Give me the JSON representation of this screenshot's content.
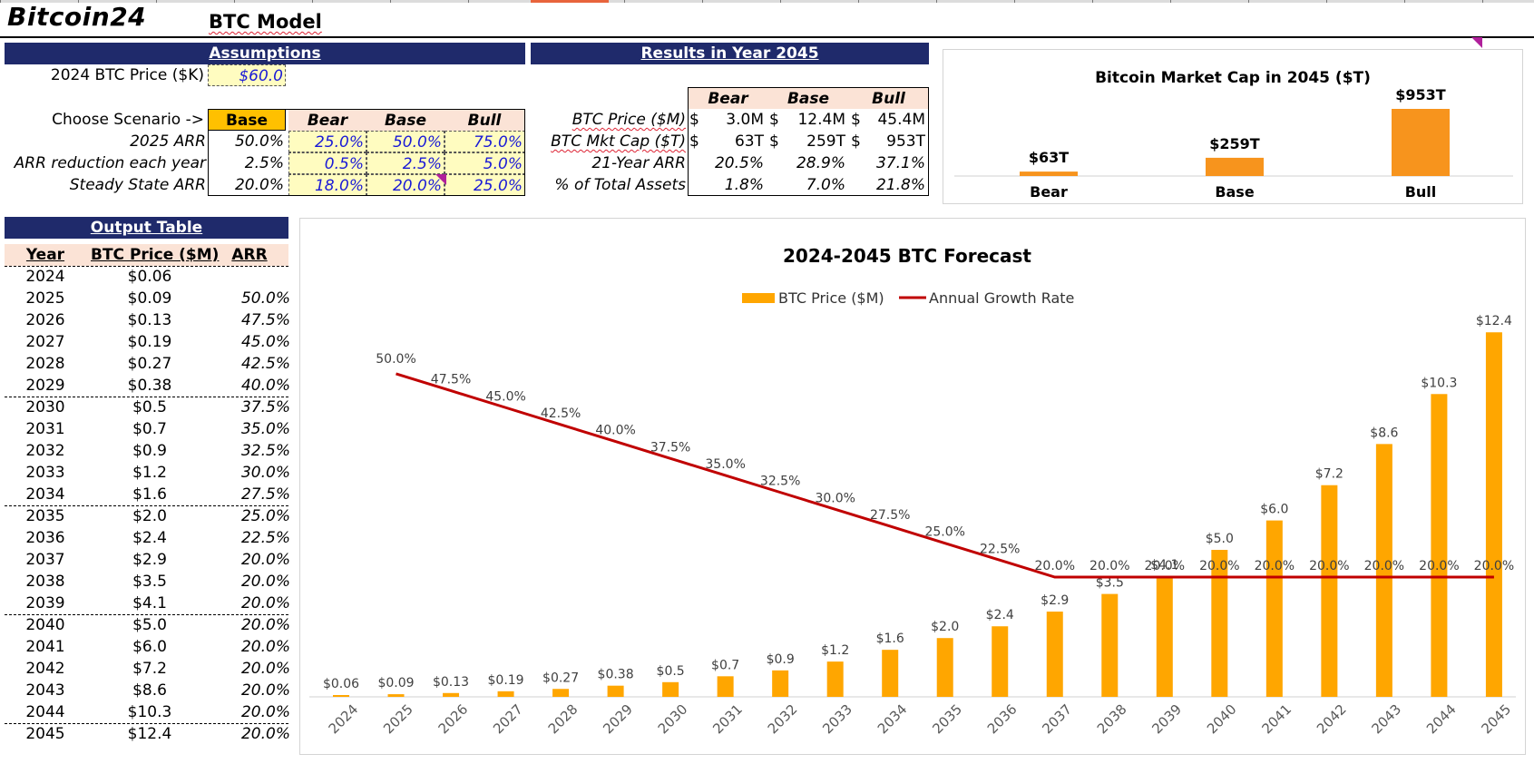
{
  "brand": "Bitcoin24",
  "model_title": "BTC Model",
  "assumptions": {
    "header": "Assumptions",
    "price_label": "2024 BTC Price ($K)",
    "price_value": "$60.0",
    "scenario_label": "Choose Scenario ->",
    "scenario_value": "Base",
    "columns": [
      "Bear",
      "Base",
      "Bull"
    ],
    "rows": [
      {
        "label": "2025 ARR",
        "selected": "50.0%",
        "values": [
          "25.0%",
          "50.0%",
          "75.0%"
        ]
      },
      {
        "label": "ARR reduction each year",
        "selected": "2.5%",
        "values": [
          "0.5%",
          "2.5%",
          "5.0%"
        ]
      },
      {
        "label": "Steady State ARR",
        "selected": "20.0%",
        "values": [
          "18.0%",
          "20.0%",
          "25.0%"
        ]
      }
    ]
  },
  "results": {
    "header": "Results in Year 2045",
    "columns": [
      "Bear",
      "Base",
      "Bull"
    ],
    "rows": [
      {
        "label": "BTC Price ($M)",
        "cur": [
          "$",
          "$",
          "$"
        ],
        "values": [
          "3.0M",
          "12.4M",
          "45.4M"
        ]
      },
      {
        "label": "BTC Mkt Cap ($T)",
        "cur": [
          "$",
          "$",
          "$"
        ],
        "values": [
          "63T",
          "259T",
          "953T"
        ]
      },
      {
        "label": "21-Year ARR",
        "cur": [
          "",
          "",
          ""
        ],
        "values": [
          "20.5%",
          "28.9%",
          "37.1%"
        ]
      },
      {
        "label": "% of Total Assets",
        "cur": [
          "",
          "",
          ""
        ],
        "values": [
          "1.8%",
          "7.0%",
          "21.8%"
        ]
      }
    ]
  },
  "output_table": {
    "header": "Output Table",
    "columns": [
      "Year",
      "BTC Price ($M)",
      "ARR"
    ],
    "rows": [
      {
        "year": "2024",
        "price": "$0.06",
        "arr": ""
      },
      {
        "year": "2025",
        "price": "$0.09",
        "arr": "50.0%"
      },
      {
        "year": "2026",
        "price": "$0.13",
        "arr": "47.5%"
      },
      {
        "year": "2027",
        "price": "$0.19",
        "arr": "45.0%"
      },
      {
        "year": "2028",
        "price": "$0.27",
        "arr": "42.5%"
      },
      {
        "year": "2029",
        "price": "$0.38",
        "arr": "40.0%"
      },
      {
        "year": "2030",
        "price": "$0.5",
        "arr": "37.5%"
      },
      {
        "year": "2031",
        "price": "$0.7",
        "arr": "35.0%"
      },
      {
        "year": "2032",
        "price": "$0.9",
        "arr": "32.5%"
      },
      {
        "year": "2033",
        "price": "$1.2",
        "arr": "30.0%"
      },
      {
        "year": "2034",
        "price": "$1.6",
        "arr": "27.5%"
      },
      {
        "year": "2035",
        "price": "$2.0",
        "arr": "25.0%"
      },
      {
        "year": "2036",
        "price": "$2.4",
        "arr": "22.5%"
      },
      {
        "year": "2037",
        "price": "$2.9",
        "arr": "20.0%"
      },
      {
        "year": "2038",
        "price": "$3.5",
        "arr": "20.0%"
      },
      {
        "year": "2039",
        "price": "$4.1",
        "arr": "20.0%"
      },
      {
        "year": "2040",
        "price": "$5.0",
        "arr": "20.0%"
      },
      {
        "year": "2041",
        "price": "$6.0",
        "arr": "20.0%"
      },
      {
        "year": "2042",
        "price": "$7.2",
        "arr": "20.0%"
      },
      {
        "year": "2043",
        "price": "$8.6",
        "arr": "20.0%"
      },
      {
        "year": "2044",
        "price": "$10.3",
        "arr": "20.0%"
      },
      {
        "year": "2045",
        "price": "$12.4",
        "arr": "20.0%"
      }
    ]
  },
  "colors": {
    "header_band": "#1f2a6b",
    "bar_orange": "#ffa600",
    "market_cap_bar": "#f7941d",
    "growth_line": "#c00000",
    "input_fill": "#fffcc0",
    "scenario_fill": "#ffc000",
    "header_fill": "#fbe3d6"
  },
  "chart_data": [
    {
      "type": "bar",
      "title": "Bitcoin Market Cap in 2045 ($T)",
      "categories": [
        "Bear",
        "Base",
        "Bull"
      ],
      "values": [
        63,
        259,
        953
      ],
      "data_labels": [
        "$63T",
        "$259T",
        "$953T"
      ],
      "legend": false,
      "grid": false
    },
    {
      "type": "bar",
      "title": "2024-2045 BTC Forecast",
      "categories": [
        "2024",
        "2025",
        "2026",
        "2027",
        "2028",
        "2029",
        "2030",
        "2031",
        "2032",
        "2033",
        "2034",
        "2035",
        "2036",
        "2037",
        "2038",
        "2039",
        "2040",
        "2041",
        "2042",
        "2043",
        "2044",
        "2045"
      ],
      "series": [
        {
          "name": "BTC Price ($M)",
          "type": "bar",
          "axis": "left",
          "values": [
            0.06,
            0.09,
            0.13,
            0.19,
            0.27,
            0.38,
            0.5,
            0.7,
            0.9,
            1.2,
            1.6,
            2.0,
            2.4,
            2.9,
            3.5,
            4.1,
            5.0,
            6.0,
            7.2,
            8.6,
            10.3,
            12.4
          ],
          "labels": [
            "$0.06",
            "$0.09",
            "$0.13",
            "$0.19",
            "$0.27",
            "$0.38",
            "$0.5",
            "$0.7",
            "$0.9",
            "$1.2",
            "$1.6",
            "$2.0",
            "$2.4",
            "$2.9",
            "$3.5",
            "$4.1",
            "$5.0",
            "$6.0",
            "$7.2",
            "$8.6",
            "$10.3",
            "$12.4"
          ]
        },
        {
          "name": "Annual Growth Rate",
          "type": "line",
          "axis": "right",
          "values": [
            null,
            50.0,
            47.5,
            45.0,
            42.5,
            40.0,
            37.5,
            35.0,
            32.5,
            30.0,
            27.5,
            25.0,
            22.5,
            20.0,
            20.0,
            20.0,
            20.0,
            20.0,
            20.0,
            20.0,
            20.0,
            20.0
          ],
          "labels": [
            "",
            "50.0%",
            "47.5%",
            "45.0%",
            "42.5%",
            "40.0%",
            "37.5%",
            "35.0%",
            "32.5%",
            "30.0%",
            "27.5%",
            "25.0%",
            "22.5%",
            "20.0%",
            "20.0%",
            "20.0%",
            "20.0%",
            "20.0%",
            "20.0%",
            "20.0%",
            "20.0%",
            "20.0%"
          ]
        }
      ],
      "legend": "top-center",
      "grid": false
    }
  ]
}
